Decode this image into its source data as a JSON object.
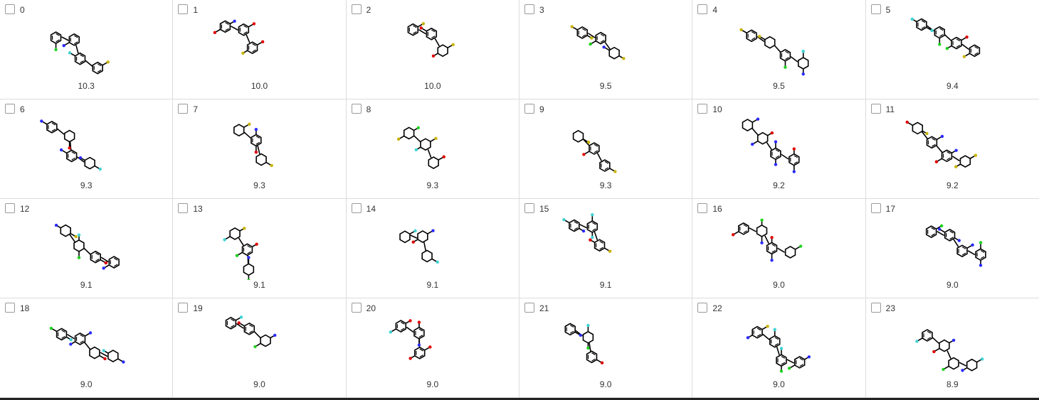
{
  "grid": {
    "items": [
      {
        "index": "0",
        "score": "10.3"
      },
      {
        "index": "1",
        "score": "10.0"
      },
      {
        "index": "2",
        "score": "10.0"
      },
      {
        "index": "3",
        "score": "9.5"
      },
      {
        "index": "4",
        "score": "9.5"
      },
      {
        "index": "5",
        "score": "9.4"
      },
      {
        "index": "6",
        "score": "9.3"
      },
      {
        "index": "7",
        "score": "9.3"
      },
      {
        "index": "8",
        "score": "9.3"
      },
      {
        "index": "9",
        "score": "9.3"
      },
      {
        "index": "10",
        "score": "9.2"
      },
      {
        "index": "11",
        "score": "9.2"
      },
      {
        "index": "12",
        "score": "9.1"
      },
      {
        "index": "13",
        "score": "9.1"
      },
      {
        "index": "14",
        "score": "9.1"
      },
      {
        "index": "15",
        "score": "9.1"
      },
      {
        "index": "16",
        "score": "9.0"
      },
      {
        "index": "17",
        "score": "9.0"
      },
      {
        "index": "18",
        "score": "9.0"
      },
      {
        "index": "19",
        "score": "9.0"
      },
      {
        "index": "20",
        "score": "9.0"
      },
      {
        "index": "21",
        "score": "9.0"
      },
      {
        "index": "22",
        "score": "9.0"
      },
      {
        "index": "23",
        "score": "8.9"
      }
    ]
  },
  "colors": {
    "bond": "#000000",
    "nitrogen": "#2a2aff",
    "oxygen": "#e00000",
    "chlorine": "#1fd21f",
    "fluorine": "#3fd3d3",
    "sulfur": "#c8b400",
    "grid_line": "#dcdcdc"
  }
}
